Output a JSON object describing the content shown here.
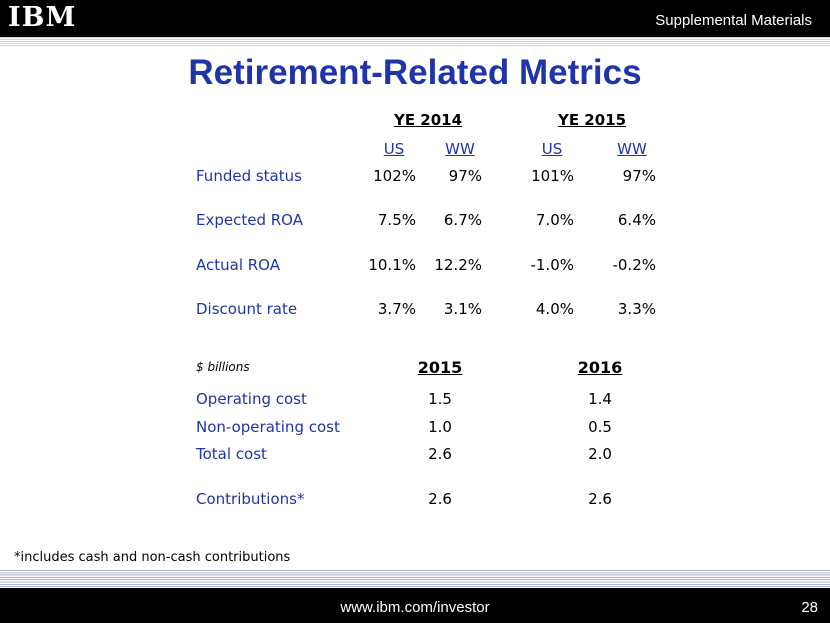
{
  "header": {
    "logo_text": "IBM",
    "section": "Supplemental Materials"
  },
  "title": "Retirement-Related Metrics",
  "table1": {
    "groups": [
      "YE 2014",
      "YE 2015"
    ],
    "subheaders": [
      "US",
      "WW",
      "US",
      "WW"
    ],
    "rows": [
      {
        "label": "Funded status",
        "values": [
          "102%",
          "97%",
          "101%",
          "97%"
        ]
      },
      {
        "label": "Expected ROA",
        "values": [
          "7.5%",
          "6.7%",
          "7.0%",
          "6.4%"
        ]
      },
      {
        "label": "Actual ROA",
        "values": [
          "10.1%",
          "12.2%",
          "-1.0%",
          "-0.2%"
        ]
      },
      {
        "label": "Discount rate",
        "values": [
          "3.7%",
          "3.1%",
          "4.0%",
          "3.3%"
        ]
      }
    ]
  },
  "table2": {
    "unit": "$ billions",
    "columns": [
      "2015",
      "2016"
    ],
    "rows": [
      {
        "label": "Operating cost",
        "values": [
          "1.5",
          "1.4"
        ]
      },
      {
        "label": "Non-operating cost",
        "values": [
          "1.0",
          "0.5"
        ]
      },
      {
        "label": "Total cost",
        "values": [
          "2.6",
          "2.0"
        ]
      },
      {
        "label": "Contributions*",
        "values": [
          "2.6",
          "2.6"
        ]
      }
    ]
  },
  "footnote": "*includes cash and non-cash contributions",
  "footer": {
    "url": "www.ibm.com/investor",
    "page": "28"
  }
}
